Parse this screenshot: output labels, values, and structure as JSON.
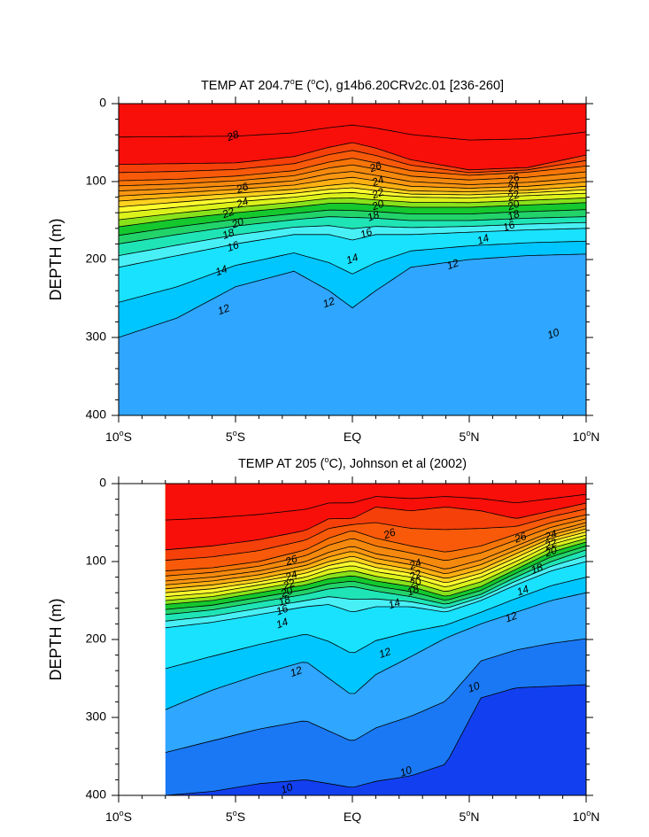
{
  "chart_data": [
    {
      "type": "contour",
      "title": "TEMP AT 204.7°E (°C), g14b6.20CRv2c.01 [236-260]",
      "title_parts": [
        "TEMP AT 204.7",
        "o",
        "E (",
        "o",
        "C), g14b6.20CRv2c.01 [236-260]"
      ],
      "ylabel": "DEPTH (m)",
      "xlim": [
        -10,
        10
      ],
      "ylim": [
        400,
        0
      ],
      "x_ticks": [
        -10,
        -5,
        0,
        5,
        10
      ],
      "x_tick_labels": [
        {
          "num": "10",
          "sup": "o",
          "hem": "S"
        },
        {
          "num": "5",
          "sup": "o",
          "hem": "S"
        },
        {
          "num": "EQ",
          "sup": "",
          "hem": ""
        },
        {
          "num": "5",
          "sup": "o",
          "hem": "N"
        },
        {
          "num": "10",
          "sup": "o",
          "hem": "N"
        }
      ],
      "y_ticks": [
        0,
        100,
        200,
        300,
        400
      ],
      "y_tick_labels": [
        "0",
        "100",
        "200",
        "300",
        "400"
      ],
      "x_data_range": [
        -10,
        10
      ],
      "contour_interval": 1,
      "isotherm_depths": {
        "lat": [
          -10,
          -7.5,
          -5,
          -2.5,
          -1,
          0,
          1,
          2.5,
          5,
          7.5,
          10
        ],
        "28": [
          78,
          77,
          76,
          68,
          56,
          50,
          57,
          72,
          85,
          82,
          66
        ],
        "26": [
          99,
          97,
          93,
          86,
          75,
          70,
          76,
          86,
          92,
          88,
          80
        ],
        "24": [
          112,
          109,
          105,
          99,
          90,
          87,
          92,
          100,
          104,
          101,
          95
        ],
        "22": [
          125,
          120,
          115,
          110,
          105,
          102,
          106,
          112,
          113,
          111,
          106
        ],
        "20": [
          140,
          133,
          126,
          120,
          115,
          114,
          117,
          120,
          121,
          118,
          115
        ],
        "18": [
          158,
          148,
          140,
          133,
          128,
          128,
          130,
          133,
          133,
          130,
          127
        ],
        "16": [
          180,
          168,
          157,
          149,
          145,
          146,
          147,
          150,
          150,
          147,
          145
        ],
        "14": [
          210,
          195,
          180,
          168,
          168,
          175,
          168,
          168,
          165,
          162,
          160
        ],
        "12": [
          300,
          275,
          235,
          215,
          240,
          262,
          240,
          210,
          200,
          195,
          193
        ]
      },
      "contour_labels": [
        {
          "value": "28",
          "lat": -5.1,
          "depth": 42
        },
        {
          "value": "26",
          "lat": -4.7,
          "depth": 109
        },
        {
          "value": "24",
          "lat": -4.7,
          "depth": 128
        },
        {
          "value": "22",
          "lat": -5.3,
          "depth": 141
        },
        {
          "value": "20",
          "lat": -4.9,
          "depth": 154
        },
        {
          "value": "18",
          "lat": -5.3,
          "depth": 168
        },
        {
          "value": "16",
          "lat": -5.1,
          "depth": 184
        },
        {
          "value": "14",
          "lat": -5.6,
          "depth": 215
        },
        {
          "value": "12",
          "lat": -5.5,
          "depth": 265
        },
        {
          "value": "12",
          "lat": -1.0,
          "depth": 256
        },
        {
          "value": "14",
          "lat": 0.0,
          "depth": 200
        },
        {
          "value": "16",
          "lat": 0.6,
          "depth": 167
        },
        {
          "value": "18",
          "lat": 0.9,
          "depth": 145
        },
        {
          "value": "20",
          "lat": 1.1,
          "depth": 131
        },
        {
          "value": "22",
          "lat": 1.1,
          "depth": 116
        },
        {
          "value": "24",
          "lat": 1.1,
          "depth": 100
        },
        {
          "value": "26",
          "lat": 1.0,
          "depth": 82
        },
        {
          "value": "14",
          "lat": 5.6,
          "depth": 175
        },
        {
          "value": "12",
          "lat": 4.3,
          "depth": 207
        },
        {
          "value": "16",
          "lat": 6.7,
          "depth": 158
        },
        {
          "value": "18",
          "lat": 6.9,
          "depth": 144
        },
        {
          "value": "20",
          "lat": 6.9,
          "depth": 131
        },
        {
          "value": "22",
          "lat": 6.9,
          "depth": 119
        },
        {
          "value": "24",
          "lat": 6.9,
          "depth": 108
        },
        {
          "value": "26",
          "lat": 6.9,
          "depth": 97
        },
        {
          "value": "10",
          "lat": 8.6,
          "depth": 296
        }
      ]
    },
    {
      "type": "contour",
      "title": "TEMP AT 205 (°C), Johnson et al (2002)",
      "title_parts": [
        "TEMP AT 205 (",
        "o",
        "C), Johnson et al (2002)"
      ],
      "ylabel": "DEPTH (m)",
      "xlim": [
        -10,
        10
      ],
      "ylim": [
        400,
        0
      ],
      "x_ticks": [
        -10,
        -5,
        0,
        5,
        10
      ],
      "x_tick_labels": [
        {
          "num": "10",
          "sup": "o",
          "hem": "S"
        },
        {
          "num": "5",
          "sup": "o",
          "hem": "S"
        },
        {
          "num": "EQ",
          "sup": "",
          "hem": ""
        },
        {
          "num": "5",
          "sup": "o",
          "hem": "N"
        },
        {
          "num": "10",
          "sup": "o",
          "hem": "N"
        }
      ],
      "y_ticks": [
        0,
        100,
        200,
        300,
        400
      ],
      "y_tick_labels": [
        "0",
        "100",
        "200",
        "300",
        "400"
      ],
      "x_data_range": [
        -8,
        10
      ],
      "contour_interval": 1,
      "isotherm_depths": {
        "lat": [
          -8,
          -6,
          -4,
          -2,
          -1,
          0,
          1,
          2.5,
          4,
          5.5,
          7,
          8.5,
          10
        ],
        "28": [
          85,
          80,
          72,
          60,
          45,
          45,
          30,
          35,
          30,
          35,
          45,
          35,
          25
        ],
        "26": [
          112,
          108,
          100,
          85,
          70,
          60,
          70,
          80,
          88,
          80,
          65,
          50,
          40
        ],
        "24": [
          125,
          120,
          112,
          100,
          88,
          80,
          90,
          98,
          110,
          98,
          80,
          62,
          50
        ],
        "22": [
          135,
          130,
          122,
          110,
          100,
          93,
          102,
          110,
          122,
          110,
          90,
          70,
          58
        ],
        "20": [
          145,
          140,
          130,
          120,
          110,
          105,
          113,
          120,
          133,
          120,
          100,
          78,
          66
        ],
        "18": [
          155,
          150,
          140,
          130,
          122,
          118,
          125,
          132,
          145,
          132,
          110,
          88,
          75
        ],
        "16": [
          168,
          162,
          152,
          142,
          135,
          132,
          138,
          145,
          155,
          142,
          120,
          100,
          85
        ],
        "14": [
          185,
          178,
          168,
          158,
          155,
          165,
          158,
          158,
          165,
          150,
          130,
          112,
          100
        ],
        "12": [
          290,
          265,
          245,
          228,
          250,
          272,
          245,
          222,
          198,
          180,
          165,
          150,
          140
        ],
        "10": [
          400,
          395,
          385,
          380,
          385,
          390,
          382,
          375,
          360,
          275,
          262,
          260,
          258
        ]
      },
      "contour_labels": [
        {
          "value": "26",
          "lat": -2.6,
          "depth": 99
        },
        {
          "value": "24",
          "lat": -2.6,
          "depth": 119
        },
        {
          "value": "22",
          "lat": -2.7,
          "depth": 130
        },
        {
          "value": "20",
          "lat": -2.8,
          "depth": 140
        },
        {
          "value": "18",
          "lat": -2.9,
          "depth": 151
        },
        {
          "value": "16",
          "lat": -3.0,
          "depth": 163
        },
        {
          "value": "14",
          "lat": -3.0,
          "depth": 180
        },
        {
          "value": "12",
          "lat": -2.4,
          "depth": 242
        },
        {
          "value": "26",
          "lat": 1.6,
          "depth": 65
        },
        {
          "value": "24",
          "lat": 2.7,
          "depth": 104
        },
        {
          "value": "22",
          "lat": 2.7,
          "depth": 118
        },
        {
          "value": "20",
          "lat": 2.7,
          "depth": 128
        },
        {
          "value": "18",
          "lat": 2.6,
          "depth": 138
        },
        {
          "value": "14",
          "lat": 1.8,
          "depth": 155
        },
        {
          "value": "12",
          "lat": 1.4,
          "depth": 218
        },
        {
          "value": "26",
          "lat": 7.2,
          "depth": 70
        },
        {
          "value": "24",
          "lat": 8.5,
          "depth": 67
        },
        {
          "value": "22",
          "lat": 8.5,
          "depth": 78
        },
        {
          "value": "20",
          "lat": 8.5,
          "depth": 88
        },
        {
          "value": "18",
          "lat": 7.9,
          "depth": 110
        },
        {
          "value": "14",
          "lat": 7.3,
          "depth": 138
        },
        {
          "value": "12",
          "lat": 6.8,
          "depth": 172
        },
        {
          "value": "10",
          "lat": 5.2,
          "depth": 262
        },
        {
          "value": "10",
          "lat": 2.3,
          "depth": 370
        },
        {
          "value": "10",
          "lat": -2.8,
          "depth": 392
        }
      ]
    }
  ]
}
